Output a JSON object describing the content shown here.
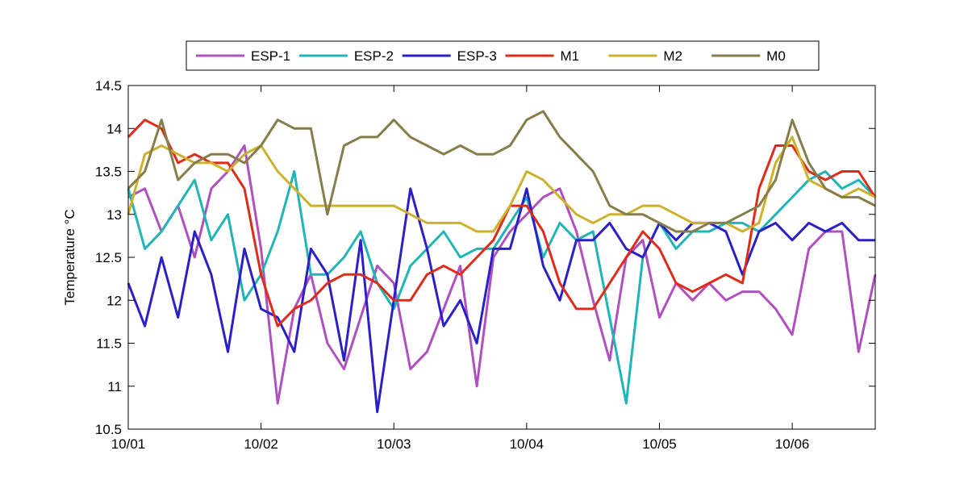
{
  "chart_data": {
    "type": "line",
    "title": "",
    "xlabel": "",
    "ylabel": "Temperature °C",
    "xlim": [
      "10/01 00:00",
      "10/06 15:00"
    ],
    "x_ticks": [
      "10/01",
      "10/02",
      "10/03",
      "10/04",
      "10/05",
      "10/06"
    ],
    "ylim": [
      10.5,
      14.5
    ],
    "y_ticks": [
      "10.5",
      "11",
      "11.5",
      "12",
      "12.5",
      "13",
      "13.5",
      "14",
      "14.5"
    ],
    "grid": false,
    "legend_position": "top, horizontal",
    "x": [
      "10/01 00:00",
      "10/01 03:00",
      "10/01 06:00",
      "10/01 09:00",
      "10/01 12:00",
      "10/01 15:00",
      "10/01 18:00",
      "10/01 21:00",
      "10/02 00:00",
      "10/02 03:00",
      "10/02 06:00",
      "10/02 09:00",
      "10/02 12:00",
      "10/02 15:00",
      "10/02 18:00",
      "10/02 21:00",
      "10/03 00:00",
      "10/03 03:00",
      "10/03 06:00",
      "10/03 09:00",
      "10/03 12:00",
      "10/03 15:00",
      "10/03 18:00",
      "10/03 21:00",
      "10/04 00:00",
      "10/04 03:00",
      "10/04 06:00",
      "10/04 09:00",
      "10/04 12:00",
      "10/04 15:00",
      "10/04 18:00",
      "10/04 21:00",
      "10/05 00:00",
      "10/05 03:00",
      "10/05 06:00",
      "10/05 09:00",
      "10/05 12:00",
      "10/05 15:00",
      "10/05 18:00",
      "10/05 21:00",
      "10/06 00:00",
      "10/06 03:00",
      "10/06 06:00",
      "10/06 09:00",
      "10/06 12:00",
      "10/06 15:00"
    ],
    "series": [
      {
        "name": "ESP-1",
        "color": "#b050c0",
        "values": [
          13.2,
          13.3,
          12.8,
          13.1,
          12.5,
          13.3,
          13.5,
          13.8,
          12.6,
          10.8,
          11.9,
          12.3,
          11.5,
          11.2,
          11.8,
          12.4,
          12.2,
          11.2,
          11.4,
          11.9,
          12.4,
          11.0,
          12.5,
          12.8,
          13.0,
          13.2,
          13.3,
          12.8,
          12.0,
          11.3,
          12.5,
          12.7,
          11.8,
          12.2,
          12.0,
          12.2,
          12.0,
          12.1,
          12.1,
          11.9,
          11.6,
          12.6,
          12.8,
          12.8,
          11.4,
          12.3
        ]
      },
      {
        "name": "ESP-2",
        "color": "#20b5b5",
        "values": [
          13.3,
          12.6,
          12.8,
          13.1,
          13.4,
          12.7,
          13.0,
          12.0,
          12.3,
          12.8,
          13.5,
          12.3,
          12.3,
          12.5,
          12.8,
          12.2,
          11.9,
          12.4,
          12.6,
          12.8,
          12.5,
          12.6,
          12.6,
          12.9,
          13.2,
          12.5,
          12.9,
          12.7,
          12.8,
          11.8,
          10.8,
          12.5,
          12.9,
          12.6,
          12.8,
          12.8,
          12.9,
          12.9,
          12.8,
          13.0,
          13.2,
          13.4,
          13.5,
          13.3,
          13.4,
          13.2
        ]
      },
      {
        "name": "ESP-3",
        "color": "#2b20c8",
        "values": [
          12.2,
          11.7,
          12.5,
          11.8,
          12.8,
          12.3,
          11.4,
          12.6,
          11.9,
          11.8,
          11.4,
          12.6,
          12.3,
          11.3,
          12.7,
          10.7,
          12.0,
          13.3,
          12.6,
          11.7,
          12.0,
          11.5,
          12.6,
          12.6,
          13.3,
          12.4,
          12.0,
          12.7,
          12.7,
          12.9,
          12.6,
          12.5,
          12.9,
          12.7,
          12.9,
          12.9,
          12.8,
          12.3,
          12.8,
          12.9,
          12.7,
          12.9,
          12.8,
          12.9,
          12.7,
          12.7
        ]
      },
      {
        "name": "M1",
        "color": "#e02a1a",
        "values": [
          13.9,
          14.1,
          14.0,
          13.6,
          13.7,
          13.6,
          13.6,
          13.3,
          12.3,
          11.7,
          11.9,
          12.0,
          12.2,
          12.3,
          12.3,
          12.2,
          12.0,
          12.0,
          12.3,
          12.4,
          12.3,
          12.5,
          12.7,
          13.1,
          13.1,
          12.8,
          12.2,
          11.9,
          11.9,
          12.2,
          12.5,
          12.8,
          12.6,
          12.2,
          12.1,
          12.2,
          12.3,
          12.2,
          13.3,
          13.8,
          13.8,
          13.5,
          13.4,
          13.5,
          13.5,
          13.2
        ]
      },
      {
        "name": "M2",
        "color": "#ccb22a",
        "values": [
          13.0,
          13.7,
          13.8,
          13.7,
          13.6,
          13.6,
          13.5,
          13.7,
          13.8,
          13.5,
          13.3,
          13.1,
          13.1,
          13.1,
          13.1,
          13.1,
          13.1,
          13.0,
          12.9,
          12.9,
          12.9,
          12.8,
          12.8,
          13.1,
          13.5,
          13.4,
          13.2,
          13.0,
          12.9,
          13.0,
          13.0,
          13.1,
          13.1,
          13.0,
          12.9,
          12.9,
          12.9,
          12.8,
          12.9,
          13.6,
          13.9,
          13.4,
          13.3,
          13.2,
          13.3,
          13.2
        ]
      },
      {
        "name": "M0",
        "color": "#867d4a",
        "values": [
          13.3,
          13.5,
          14.1,
          13.4,
          13.6,
          13.7,
          13.7,
          13.6,
          13.8,
          14.1,
          14.0,
          14.0,
          13.0,
          13.8,
          13.9,
          13.9,
          14.1,
          13.9,
          13.8,
          13.7,
          13.8,
          13.7,
          13.7,
          13.8,
          14.1,
          14.2,
          13.9,
          13.7,
          13.5,
          13.1,
          13.0,
          13.0,
          12.9,
          12.8,
          12.8,
          12.9,
          12.9,
          13.0,
          13.1,
          13.4,
          14.1,
          13.6,
          13.3,
          13.2,
          13.2,
          13.1
        ]
      }
    ]
  }
}
